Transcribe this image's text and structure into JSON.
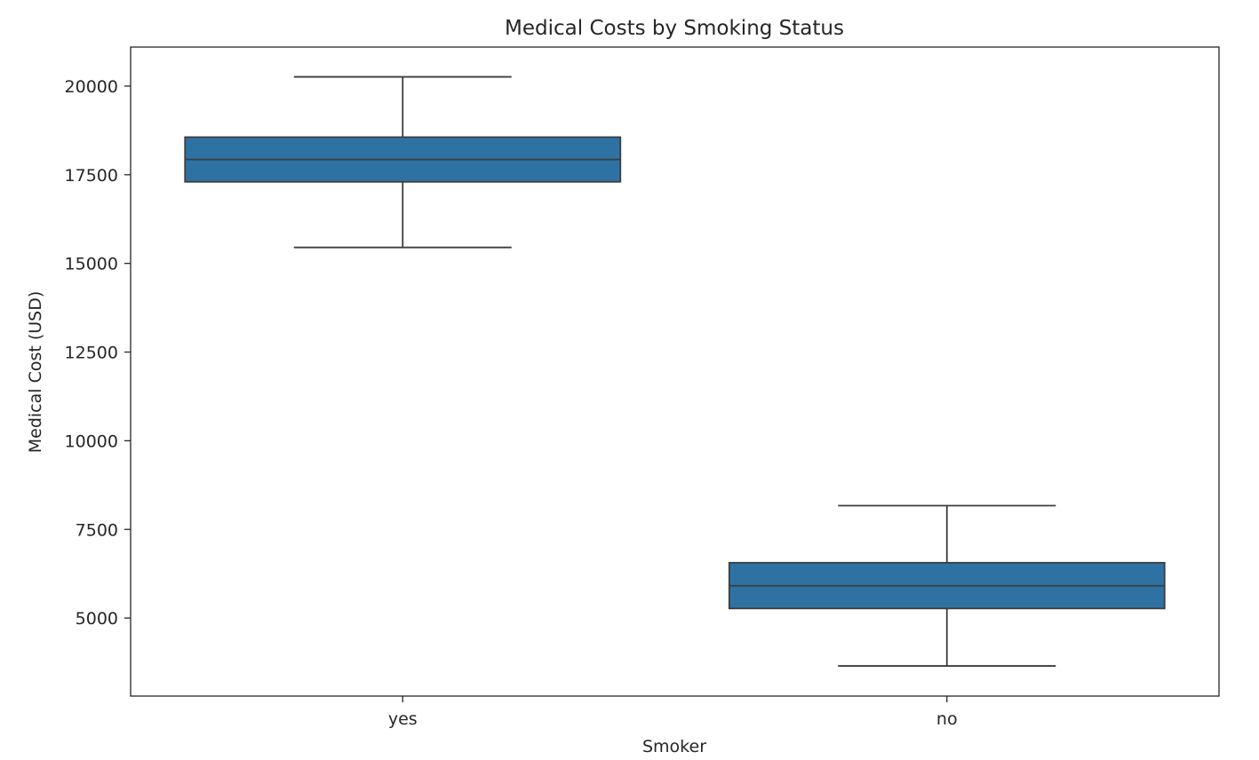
{
  "chart_data": {
    "type": "box",
    "title": "Medical Costs by Smoking Status",
    "xlabel": "Smoker",
    "ylabel": "Medical Cost (USD)",
    "categories": [
      "yes",
      "no"
    ],
    "boxes": [
      {
        "category": "yes",
        "whisker_low": 15450,
        "q1": 17300,
        "median": 17930,
        "q3": 18560,
        "whisker_high": 20260
      },
      {
        "category": "no",
        "whisker_low": 3650,
        "q1": 5270,
        "median": 5910,
        "q3": 6560,
        "whisker_high": 8170
      }
    ],
    "yticks": [
      5000,
      7500,
      10000,
      12500,
      15000,
      17500,
      20000
    ],
    "ylim": [
      2800,
      21100
    ],
    "grid": false,
    "colors": {
      "box_fill": "#2e72a4",
      "box_edge": "#3d3d3d",
      "axis": "#262626",
      "text": "#262626"
    }
  }
}
